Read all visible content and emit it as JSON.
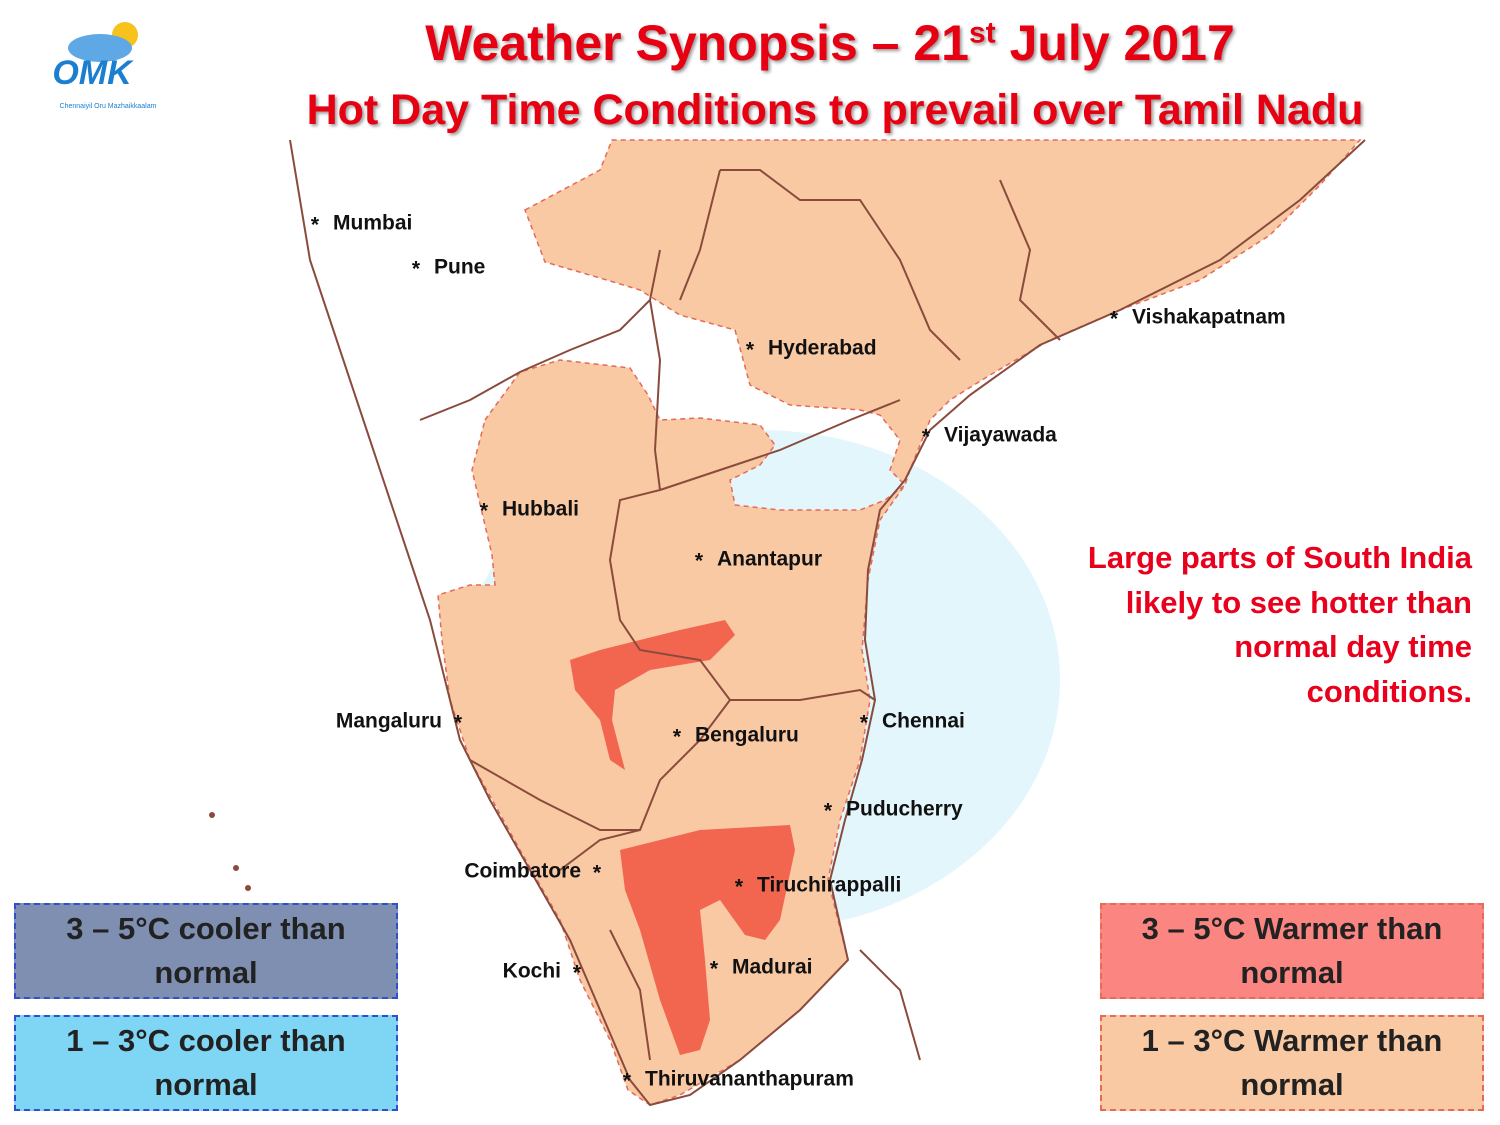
{
  "header": {
    "title": "Weather Synopsis – 21",
    "title_ordinal": "st",
    "title_rest": "July 2017",
    "subtitle": "Hot Day Time Conditions to prevail over Tamil Nadu"
  },
  "logo": {
    "mark": "OMK",
    "tagline": "Chennaiyil Oru Mazhaikkaalam"
  },
  "map": {
    "marker": "*",
    "cities": [
      "Mumbai",
      "Pune",
      "Hyderabad",
      "Vishakapatnam",
      "Vijayawada",
      "Hubbali",
      "Anantapur",
      "Mangaluru",
      "Bengaluru",
      "Chennai",
      "Puducherry",
      "Coimbatore",
      "Tiruchirappalli",
      "Kochi",
      "Madurai",
      "Thiruvananthapuram"
    ]
  },
  "annotation": [
    "Large parts of South India",
    "likely to see hotter than",
    "normal day time",
    "conditions."
  ],
  "legend": [
    {
      "lines": [
        "3 – 5°C cooler than",
        "normal"
      ],
      "color": "#7f8fb1"
    },
    {
      "lines": [
        "1 – 3°C cooler than",
        "normal"
      ],
      "color": "#7fd6f4"
    },
    {
      "lines": [
        "3 – 5°C Warmer than",
        "normal"
      ],
      "color": "#fb8580"
    },
    {
      "lines": [
        "1 – 3°C Warmer than",
        "normal"
      ],
      "color": "#f9c9a4"
    }
  ]
}
